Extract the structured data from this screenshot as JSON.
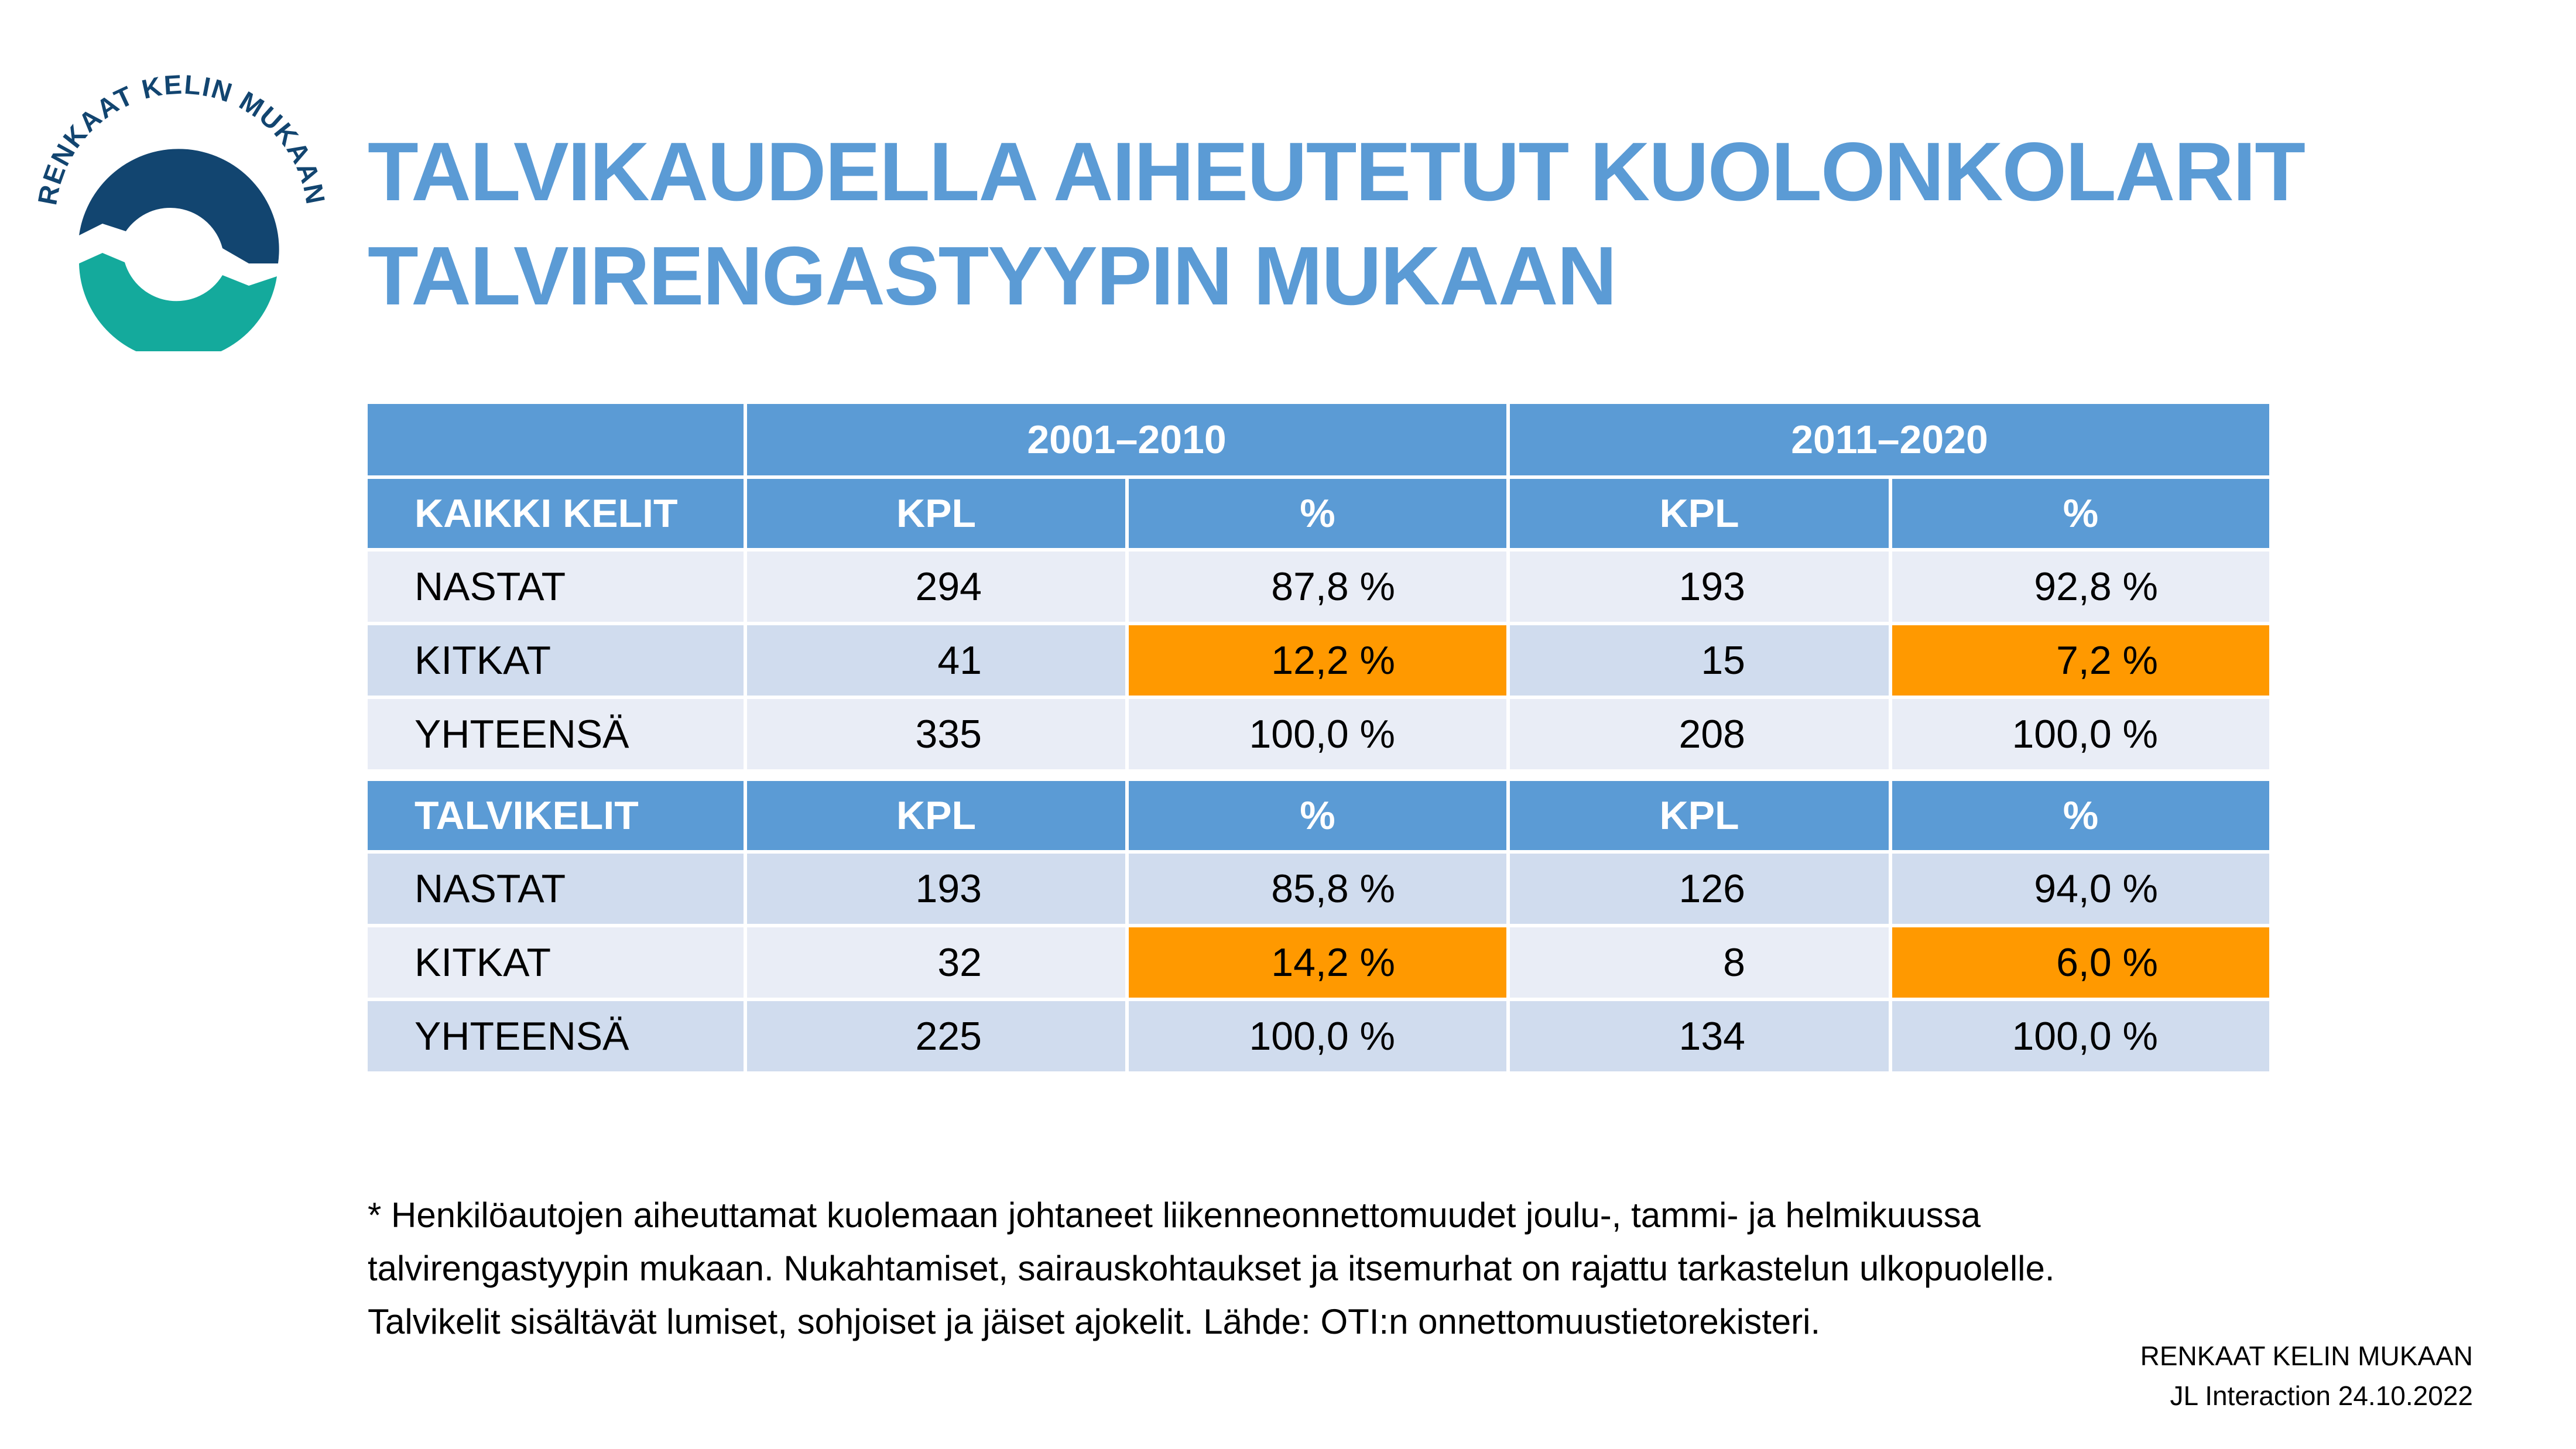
{
  "logo": {
    "text": "RENKAAT KELIN MUKAAN",
    "colors": {
      "navy": "#124570",
      "teal": "#14AA9C"
    }
  },
  "title": {
    "line1": "TALVIKAUDELLA AIHEUTETUT KUOLONKOLARIT",
    "line2": "TALVIRENGASTYYPIN MUKAAN"
  },
  "colors": {
    "header": "#5B9BD5",
    "row_light": "#E9EDF6",
    "row_dark": "#D0DCEE",
    "highlight": "#FF9900"
  },
  "table": {
    "periods": [
      "2001–2010",
      "2011–2020"
    ],
    "sections": [
      {
        "label": "KAIKKI KELIT",
        "cols": [
          "KPL",
          "%",
          "KPL",
          "%"
        ],
        "rows": [
          {
            "label": "NASTAT",
            "values": [
              "294",
              "87,8 %",
              "193",
              "92,8 %"
            ]
          },
          {
            "label": "KITKAT",
            "values": [
              "41",
              "12,2 %",
              "15",
              "7,2 %"
            ]
          },
          {
            "label": "YHTEENSÄ",
            "values": [
              "335",
              "100,0 %",
              "208",
              "100,0 %"
            ]
          }
        ]
      },
      {
        "label": "TALVIKELIT",
        "cols": [
          "KPL",
          "%",
          "KPL",
          "%"
        ],
        "rows": [
          {
            "label": "NASTAT",
            "values": [
              "193",
              "85,8 %",
              "126",
              "94,0 %"
            ]
          },
          {
            "label": "KITKAT",
            "values": [
              "32",
              "14,2 %",
              "8",
              "6,0 %"
            ]
          },
          {
            "label": "YHTEENSÄ",
            "values": [
              "225",
              "100,0 %",
              "134",
              "100,0 %"
            ]
          }
        ]
      }
    ]
  },
  "footnote": [
    "* Henkilöautojen aiheuttamat kuolemaan johtaneet liikenneonnettomuudet joulu-, tammi- ja helmikuussa",
    "talvirengastyypin mukaan. Nukahtamiset, sairauskohtaukset ja itsemurhat on rajattu tarkastelun ulkopuolelle.",
    "Talvikelit sisältävät lumiset, sohjoiset ja jäiset ajokelit. Lähde: OTI:n onnettomuustietorekisteri."
  ],
  "credit": {
    "line1": "RENKAAT KELIN MUKAAN",
    "line2": "JL Interaction 24.10.2022"
  }
}
